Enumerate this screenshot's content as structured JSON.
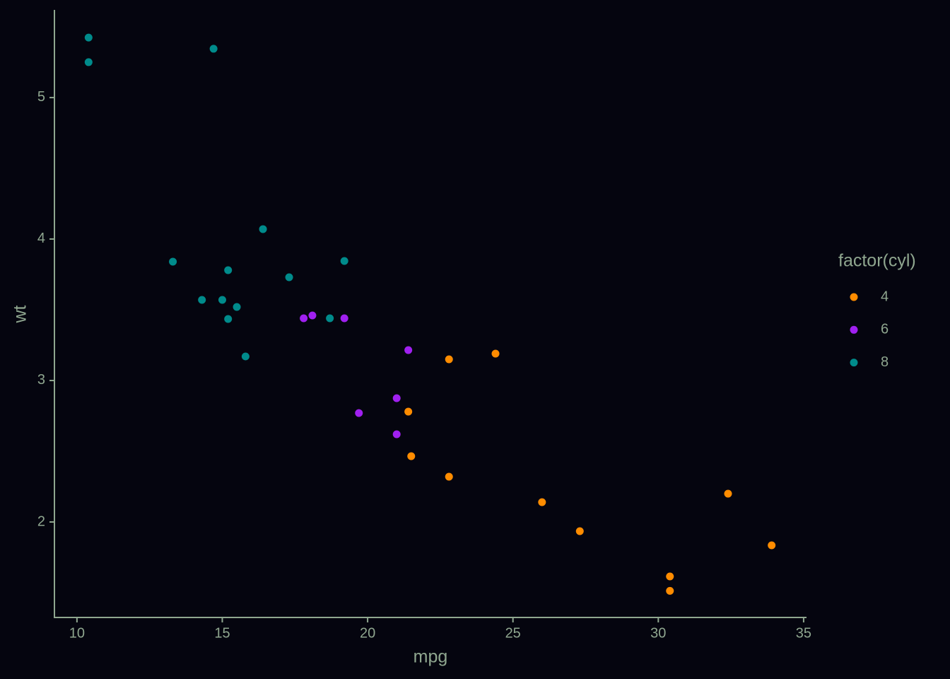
{
  "chart_data": {
    "type": "scatter",
    "x_label": "mpg",
    "y_label": "wt",
    "legend_title": "factor(cyl)",
    "xlim": [
      9.225,
      35.075
    ],
    "ylim": [
      1.3175,
      5.6196
    ],
    "xticks": [
      10,
      15,
      20,
      25,
      30,
      35
    ],
    "yticks": [
      2,
      3,
      4,
      5
    ],
    "legend_position": "right",
    "series": [
      {
        "name": "4",
        "color": "#ff8c00",
        "x": [
          22.8,
          24.4,
          22.8,
          32.4,
          30.4,
          33.9,
          21.5,
          27.3,
          26.0,
          30.4,
          21.4
        ],
        "y": [
          2.32,
          3.19,
          3.15,
          2.2,
          1.615,
          1.835,
          2.465,
          1.935,
          2.14,
          1.513,
          2.78
        ]
      },
      {
        "name": "6",
        "color": "#a020f0",
        "x": [
          21.0,
          21.0,
          21.4,
          18.1,
          19.2,
          17.8,
          19.7
        ],
        "y": [
          2.62,
          2.875,
          3.215,
          3.46,
          3.44,
          3.44,
          2.77
        ]
      },
      {
        "name": "8",
        "color": "#008b8b",
        "x": [
          18.7,
          14.3,
          16.4,
          17.3,
          15.2,
          10.4,
          10.4,
          14.7,
          15.5,
          15.2,
          13.3,
          19.2,
          15.8,
          15.0
        ],
        "y": [
          3.44,
          3.57,
          4.07,
          3.73,
          3.78,
          5.25,
          5.424,
          5.345,
          3.52,
          3.435,
          3.84,
          3.845,
          3.17,
          3.57
        ]
      }
    ]
  }
}
